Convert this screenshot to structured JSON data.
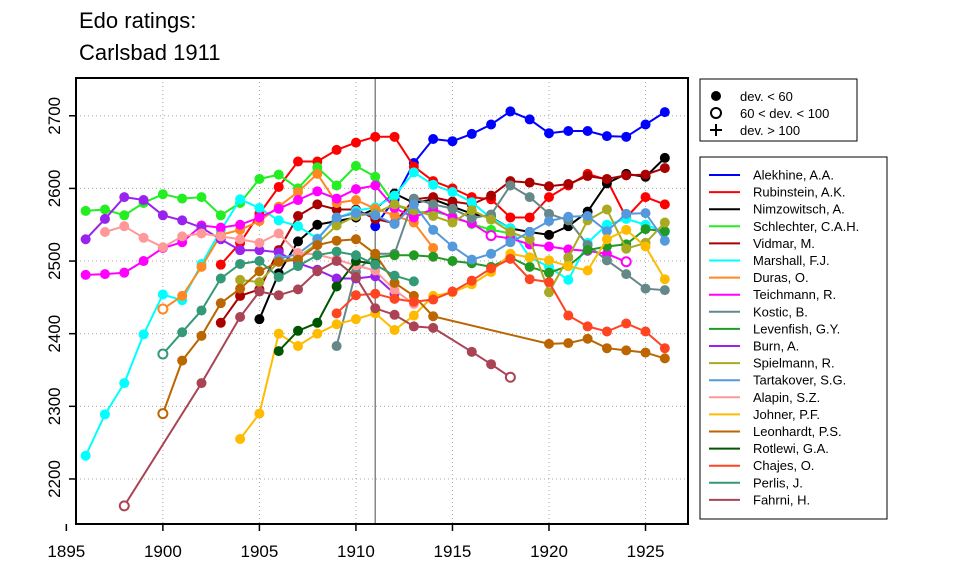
{
  "chart_data": {
    "type": "line",
    "title_lines": [
      "Edo ratings:",
      "Carlsbad 1911"
    ],
    "xlabel": "",
    "ylabel": "",
    "xlim": [
      1895.5,
      1927.2
    ],
    "ylim": [
      2138,
      2752
    ],
    "x_ticks": [
      1895,
      1900,
      1905,
      1910,
      1915,
      1920,
      1925
    ],
    "y_ticks": [
      2200,
      2300,
      2400,
      2500,
      2600,
      2700
    ],
    "grid": true,
    "reference_line_x": 1911,
    "marker_legend": {
      "position": "top-right",
      "entries": [
        {
          "symbol": "filled-circle",
          "label": "dev. < 60"
        },
        {
          "symbol": "open-circle",
          "label": "60 < dev. < 100"
        },
        {
          "symbol": "plus",
          "label": "dev. > 100"
        }
      ]
    },
    "series_legend_position": "right",
    "series": [
      {
        "name": "Alekhine, A.A.",
        "color": "#0000ff",
        "x": [
          1911,
          1912,
          1913,
          1914,
          1915,
          1916,
          1917,
          1918,
          1919,
          1920,
          1921,
          1922,
          1923,
          1924,
          1925,
          1926
        ],
        "y": [
          2548,
          2585,
          2635,
          2668,
          2665,
          2675,
          2688,
          2706,
          2695,
          2676,
          2679,
          2679,
          2672,
          2671,
          2688,
          2705
        ]
      },
      {
        "name": "Rubinstein, A.K.",
        "color": "#ff0000",
        "x": [
          1903,
          1904,
          1905,
          1906,
          1907,
          1908,
          1909,
          1910,
          1911,
          1912,
          1913,
          1914,
          1915,
          1916,
          1917,
          1918,
          1919,
          1920,
          1921,
          1922,
          1923,
          1924,
          1925,
          1926
        ],
        "y": [
          2495,
          2525,
          2565,
          2602,
          2637,
          2637,
          2653,
          2663,
          2671,
          2671,
          2630,
          2610,
          2600,
          2588,
          2585,
          2560,
          2560,
          2588,
          2604,
          2620,
          2612,
          2560,
          2588,
          2578
        ]
      },
      {
        "name": "Nimzowitsch, A.",
        "color": "#000000",
        "x": [
          1905,
          1906,
          1907,
          1908,
          1909,
          1910,
          1911,
          1912,
          1913,
          1914,
          1915,
          1916,
          1917,
          1918,
          1919,
          1920,
          1921,
          1922,
          1923,
          1924,
          1925,
          1926
        ],
        "y": [
          2420,
          2483,
          2527,
          2550,
          2555,
          2560,
          2572,
          2593,
          2580,
          2585,
          2575,
          2565,
          2560,
          2545,
          2540,
          2536,
          2548,
          2568,
          2607,
          2620,
          2616,
          2642
        ]
      },
      {
        "name": "Schlechter, C.A.H.",
        "color": "#22ee22",
        "x": [
          1896,
          1897,
          1898,
          1899,
          1900,
          1901,
          1902,
          1903,
          1904,
          1905,
          1906,
          1907,
          1908,
          1909,
          1910,
          1911,
          1912,
          1913,
          1914,
          1915,
          1916,
          1917,
          1918
        ],
        "y": [
          2569,
          2571,
          2563,
          2580,
          2592,
          2586,
          2588,
          2563,
          2580,
          2613,
          2619,
          2600,
          2629,
          2604,
          2631,
          2616,
          2578,
          2567,
          2568,
          2562,
          2551,
          2543,
          2538
        ]
      },
      {
        "name": "Vidmar, M.",
        "color": "#aa0000",
        "x": [
          1903,
          1904,
          1905,
          1906,
          1907,
          1908,
          1909,
          1910,
          1911,
          1912,
          1913,
          1914,
          1915,
          1916,
          1917,
          1918,
          1919,
          1920,
          1921,
          1922,
          1923,
          1924,
          1925,
          1926
        ],
        "y": [
          2415,
          2452,
          2461,
          2515,
          2562,
          2578,
          2571,
          2571,
          2558,
          2552,
          2585,
          2588,
          2582,
          2578,
          2590,
          2610,
          2608,
          2603,
          2606,
          2617,
          2613,
          2618,
          2619,
          2628
        ]
      },
      {
        "name": "Marshall, F.J.",
        "color": "#00ffff",
        "x": [
          1896,
          1897,
          1898,
          1899,
          1900,
          1901,
          1902,
          1903,
          1904,
          1905,
          1906,
          1907,
          1908,
          1909,
          1910,
          1911,
          1912,
          1913,
          1914,
          1915,
          1916,
          1917,
          1918,
          1919,
          1920,
          1921,
          1922,
          1923,
          1924,
          1925,
          1926
        ],
        "y": [
          2232,
          2289,
          2332,
          2399,
          2454,
          2446,
          2496,
          2542,
          2585,
          2573,
          2556,
          2548,
          2531,
          2559,
          2569,
          2574,
          2590,
          2622,
          2605,
          2595,
          2581,
          2559,
          2545,
          2505,
          2492,
          2474,
          2525,
          2550,
          2558,
          2550,
          2540
        ]
      },
      {
        "name": "Duras, O.",
        "color": "#ff8822",
        "x": [
          1900,
          1901,
          1902,
          1903,
          1904,
          1905,
          1906,
          1907,
          1908,
          1909,
          1910,
          1911,
          1912,
          1913,
          1914
        ],
        "y": [
          2434,
          2452,
          2492,
          2536,
          2543,
          2555,
          2575,
          2595,
          2620,
          2580,
          2584,
          2572,
          2563,
          2553,
          2518
        ]
      },
      {
        "name": "Teichmann, R.",
        "color": "#ff00ff",
        "x": [
          1896,
          1897,
          1898,
          1899,
          1900,
          1901,
          1902,
          1903,
          1904,
          1905,
          1906,
          1907,
          1908,
          1909,
          1910,
          1911,
          1912,
          1913,
          1914,
          1915,
          1916,
          1917,
          1918,
          1919,
          1920,
          1921,
          1922,
          1923,
          1924
        ],
        "y": [
          2481,
          2482,
          2484,
          2500,
          2518,
          2526,
          2549,
          2546,
          2550,
          2560,
          2572,
          2584,
          2596,
          2586,
          2599,
          2604,
          2573,
          2560,
          2572,
          2560,
          2552,
          2535,
          2531,
          2523,
          2520,
          2516,
          2514,
          2510,
          2499
        ]
      },
      {
        "name": "Kostic, B.",
        "color": "#668888",
        "x": [
          1909,
          1910,
          1911,
          1912,
          1913,
          1914,
          1915,
          1916,
          1917,
          1918,
          1919,
          1920,
          1921,
          1922,
          1923,
          1924,
          1925,
          1926
        ],
        "y": [
          2383,
          2485,
          2510,
          2510,
          2586,
          2578,
          2572,
          2559,
          2564,
          2604,
          2588,
          2565,
          2556,
          2522,
          2501,
          2482,
          2462,
          2460
        ]
      },
      {
        "name": "Levenfish, G.Y.",
        "color": "#229922",
        "x": [
          1911,
          1912,
          1913,
          1914,
          1915,
          1916,
          1917,
          1918,
          1919,
          1920,
          1921,
          1922,
          1923,
          1924,
          1925,
          1926
        ],
        "y": [
          2505,
          2508,
          2508,
          2506,
          2500,
          2497,
          2492,
          2505,
          2492,
          2484,
          2493,
          2515,
          2520,
          2523,
          2544,
          2541
        ]
      },
      {
        "name": "Burn, A.",
        "color": "#9922ee",
        "x": [
          1896,
          1897,
          1898,
          1899,
          1900,
          1901,
          1902,
          1903,
          1904,
          1905,
          1906,
          1907,
          1908,
          1909,
          1910,
          1911,
          1912
        ],
        "y": [
          2530,
          2558,
          2588,
          2584,
          2563,
          2556,
          2546,
          2530,
          2515,
          2515,
          2512,
          2497,
          2488,
          2476,
          2476,
          2479,
          2455
        ]
      },
      {
        "name": "Spielmann, R.",
        "color": "#aaaa22",
        "x": [
          1904,
          1905,
          1906,
          1907,
          1908,
          1909,
          1910,
          1911,
          1912,
          1913,
          1914,
          1915,
          1916,
          1917,
          1918,
          1919,
          1920,
          1921,
          1922,
          1923,
          1924,
          1925,
          1926
        ],
        "y": [
          2474,
          2471,
          2499,
          2505,
          2524,
          2549,
          2562,
          2566,
          2578,
          2570,
          2562,
          2553,
          2570,
          2557,
          2540,
          2530,
          2457,
          2505,
          2556,
          2571,
          2517,
          2525,
          2553
        ]
      },
      {
        "name": "Tartakover, S.G.",
        "color": "#5599dd",
        "x": [
          1906,
          1907,
          1908,
          1909,
          1910,
          1911,
          1912,
          1913,
          1914,
          1915,
          1916,
          1917,
          1918,
          1919,
          1920,
          1921,
          1922,
          1923,
          1924,
          1925,
          1926
        ],
        "y": [
          2503,
          2510,
          2530,
          2560,
          2566,
          2563,
          2551,
          2578,
          2543,
          2520,
          2502,
          2510,
          2526,
          2540,
          2555,
          2561,
          2562,
          2541,
          2565,
          2566,
          2528
        ]
      },
      {
        "name": "Alapin, S.Z.",
        "color": "#ff9999",
        "x": [
          1897,
          1898,
          1899,
          1900,
          1901,
          1902,
          1903,
          1904,
          1905,
          1906,
          1907,
          1908,
          1909,
          1910,
          1911,
          1912,
          1913
        ],
        "y": [
          2540,
          2548,
          2532,
          2519,
          2534,
          2538,
          2534,
          2530,
          2525,
          2538,
          2511,
          2509,
          2502,
          2494,
          2487,
          2460,
          2441
        ]
      },
      {
        "name": "Johner, P.F.",
        "color": "#ffbb00",
        "x": [
          1904,
          1905,
          1906,
          1907,
          1908,
          1909,
          1910,
          1911,
          1912,
          1913,
          1914,
          1915,
          1916,
          1917,
          1918,
          1919,
          1920,
          1921,
          1922,
          1923,
          1924,
          1925,
          1926
        ],
        "y": [
          2255,
          2290,
          2400,
          2383,
          2400,
          2413,
          2420,
          2428,
          2405,
          2425,
          2452,
          2457,
          2468,
          2485,
          2510,
          2505,
          2501,
          2493,
          2487,
          2530,
          2543,
          2520,
          2475
        ]
      },
      {
        "name": "Leonhardt, P.S.",
        "color": "#bb6600",
        "x": [
          1900,
          1901,
          1902,
          1903,
          1904,
          1905,
          1906,
          1907,
          1908,
          1909,
          1910,
          1911,
          1912,
          1913,
          1914,
          1920,
          1921,
          1922,
          1923,
          1924,
          1925,
          1926
        ],
        "y": [
          2290,
          2363,
          2397,
          2442,
          2462,
          2486,
          2499,
          2502,
          2522,
          2528,
          2530,
          2510,
          2470,
          2452,
          2424,
          2386,
          2387,
          2393,
          2380,
          2377,
          2374,
          2366
        ]
      },
      {
        "name": "Rotlewi, G.A.",
        "color": "#005500",
        "x": [
          1906,
          1907,
          1908,
          1909,
          1910,
          1911
        ],
        "y": [
          2376,
          2404,
          2415,
          2465,
          2500,
          2496
        ]
      },
      {
        "name": "Chajes, O.",
        "color": "#ff4422",
        "x": [
          1909,
          1910,
          1911,
          1912,
          1913,
          1914,
          1915,
          1916,
          1917,
          1918,
          1919,
          1920,
          1921,
          1922,
          1923,
          1924,
          1925,
          1926
        ],
        "y": [
          2428,
          2453,
          2455,
          2448,
          2444,
          2447,
          2458,
          2473,
          2490,
          2503,
          2475,
          2471,
          2425,
          2410,
          2403,
          2414,
          2403,
          2380
        ]
      },
      {
        "name": "Perlis, J.",
        "color": "#339977",
        "x": [
          1900,
          1901,
          1902,
          1903,
          1904,
          1905,
          1906,
          1907,
          1908,
          1909,
          1910,
          1911,
          1912,
          1913
        ],
        "y": [
          2372,
          2402,
          2432,
          2476,
          2496,
          2500,
          2478,
          2493,
          2508,
          2513,
          2508,
          2495,
          2480,
          2472
        ]
      },
      {
        "name": "Fahrni, H.",
        "color": "#aa4455",
        "x": [
          1898,
          1902,
          1904,
          1905,
          1906,
          1907,
          1908,
          1909,
          1910,
          1911,
          1912,
          1913,
          1914,
          1916,
          1917,
          1918
        ],
        "y": [
          2163,
          2332,
          2423,
          2458,
          2453,
          2461,
          2486,
          2500,
          2478,
          2435,
          2426,
          2410,
          2408,
          2375,
          2358,
          2340
        ]
      }
    ]
  }
}
